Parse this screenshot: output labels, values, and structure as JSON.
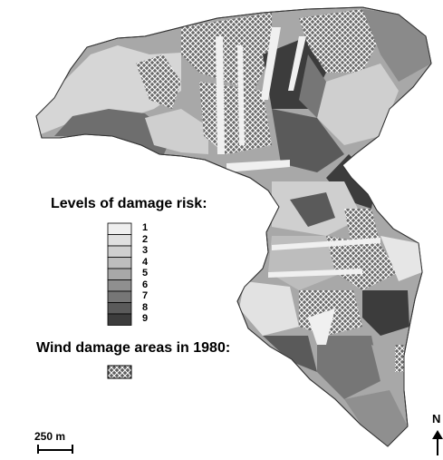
{
  "legend": {
    "title": "Levels of damage risk:",
    "levels": [
      {
        "label": "1",
        "color": "#efefef"
      },
      {
        "label": "2",
        "color": "#e0e0e0"
      },
      {
        "label": "3",
        "color": "#cfcfcf"
      },
      {
        "label": "4",
        "color": "#bdbdbd"
      },
      {
        "label": "5",
        "color": "#a8a8a8"
      },
      {
        "label": "6",
        "color": "#8f8f8f"
      },
      {
        "label": "7",
        "color": "#767676"
      },
      {
        "label": "8",
        "color": "#5a5a5a"
      },
      {
        "label": "9",
        "color": "#3c3c3c"
      }
    ]
  },
  "wind_damage": {
    "title": "Wind damage areas in 1980:",
    "hatch_color": "#ffffff",
    "hatch_bg": "#5e5e5e"
  },
  "scale_bar": {
    "label": "250 m"
  },
  "north_arrow": {
    "label": "N",
    "icon": "north-arrow-icon"
  }
}
